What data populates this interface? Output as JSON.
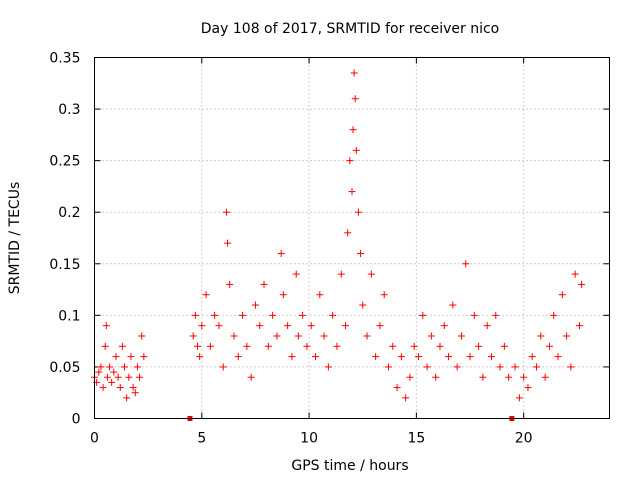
{
  "chart_data": {
    "type": "scatter",
    "title": "Day 108 of 2017, SRMTID for receiver nico",
    "xlabel": "GPS time / hours",
    "ylabel": "SRMTID / TECUs",
    "xlim": [
      0,
      24
    ],
    "ylim": [
      0,
      0.35
    ],
    "x_ticks": [
      0,
      5,
      10,
      15,
      20
    ],
    "x_tick_labels": [
      "0",
      "5",
      "10",
      "15",
      "20"
    ],
    "y_ticks": [
      0,
      0.05,
      0.1,
      0.15,
      0.2,
      0.25,
      0.3,
      0.35
    ],
    "y_tick_labels": [
      "0",
      "0.05",
      "0.1",
      "0.15",
      "0.2",
      "0.25",
      "0.3",
      "0.35"
    ],
    "grid": true,
    "marker": "+",
    "color": "#ff0000",
    "data_gaps_hours": [
      4.45,
      19.45
    ],
    "series": [
      {
        "name": "SRMTID",
        "x": [
          0.0,
          0.1,
          0.2,
          0.3,
          0.4,
          0.5,
          0.55,
          0.6,
          0.7,
          0.8,
          0.9,
          1.0,
          1.1,
          1.2,
          1.3,
          1.4,
          1.5,
          1.6,
          1.7,
          1.8,
          1.9,
          2.0,
          2.1,
          2.2,
          2.3,
          4.6,
          4.7,
          4.8,
          4.9,
          5.0,
          5.2,
          5.4,
          5.6,
          5.8,
          6.0,
          6.15,
          6.2,
          6.3,
          6.5,
          6.7,
          6.9,
          7.1,
          7.3,
          7.5,
          7.7,
          7.9,
          8.1,
          8.3,
          8.5,
          8.7,
          8.8,
          9.0,
          9.2,
          9.4,
          9.5,
          9.7,
          9.9,
          10.1,
          10.3,
          10.5,
          10.7,
          10.9,
          11.1,
          11.3,
          11.5,
          11.7,
          11.8,
          11.9,
          12.0,
          12.05,
          12.1,
          12.15,
          12.2,
          12.3,
          12.4,
          12.5,
          12.7,
          12.9,
          13.1,
          13.3,
          13.5,
          13.7,
          13.9,
          14.1,
          14.3,
          14.5,
          14.7,
          14.9,
          15.1,
          15.3,
          15.5,
          15.7,
          15.9,
          16.1,
          16.3,
          16.5,
          16.7,
          16.9,
          17.1,
          17.3,
          17.5,
          17.7,
          17.9,
          18.1,
          18.3,
          18.5,
          18.7,
          18.9,
          19.1,
          19.3,
          19.6,
          19.8,
          20.0,
          20.2,
          20.4,
          20.6,
          20.8,
          21.0,
          21.2,
          21.4,
          21.6,
          21.8,
          22.0,
          22.2,
          22.4,
          22.6,
          22.7
        ],
        "y": [
          0.04,
          0.035,
          0.045,
          0.05,
          0.03,
          0.07,
          0.09,
          0.04,
          0.05,
          0.035,
          0.045,
          0.06,
          0.04,
          0.03,
          0.07,
          0.05,
          0.02,
          0.04,
          0.06,
          0.03,
          0.025,
          0.05,
          0.04,
          0.08,
          0.06,
          0.08,
          0.1,
          0.07,
          0.06,
          0.09,
          0.12,
          0.07,
          0.1,
          0.09,
          0.05,
          0.2,
          0.17,
          0.13,
          0.08,
          0.06,
          0.1,
          0.07,
          0.04,
          0.11,
          0.09,
          0.13,
          0.07,
          0.1,
          0.08,
          0.16,
          0.12,
          0.09,
          0.06,
          0.14,
          0.08,
          0.1,
          0.07,
          0.09,
          0.06,
          0.12,
          0.08,
          0.05,
          0.1,
          0.07,
          0.14,
          0.09,
          0.18,
          0.25,
          0.22,
          0.28,
          0.335,
          0.31,
          0.26,
          0.2,
          0.16,
          0.11,
          0.08,
          0.14,
          0.06,
          0.09,
          0.12,
          0.05,
          0.07,
          0.03,
          0.06,
          0.02,
          0.04,
          0.07,
          0.06,
          0.1,
          0.05,
          0.08,
          0.04,
          0.07,
          0.09,
          0.06,
          0.11,
          0.05,
          0.08,
          0.15,
          0.06,
          0.1,
          0.07,
          0.04,
          0.09,
          0.06,
          0.1,
          0.05,
          0.07,
          0.04,
          0.05,
          0.02,
          0.04,
          0.03,
          0.06,
          0.05,
          0.08,
          0.04,
          0.07,
          0.1,
          0.06,
          0.12,
          0.08,
          0.05,
          0.14,
          0.09,
          0.13
        ]
      }
    ]
  }
}
